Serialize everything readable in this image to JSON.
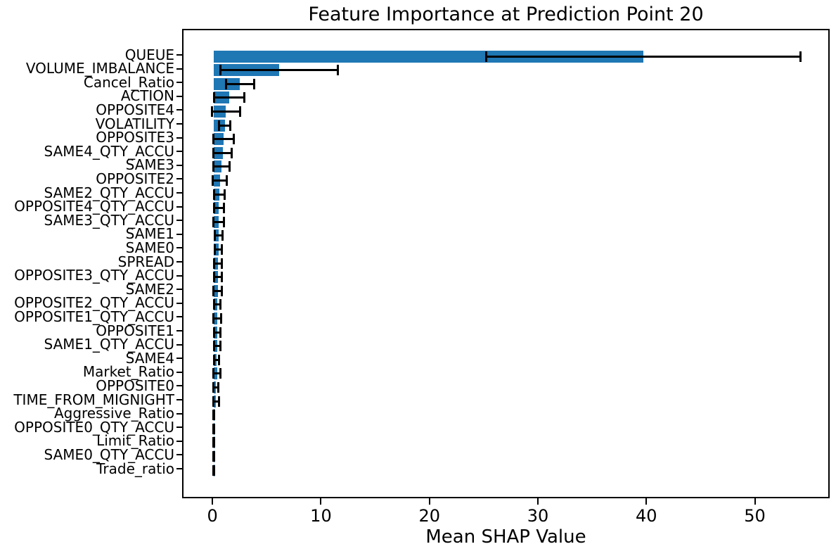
{
  "chart_data": {
    "type": "bar",
    "orientation": "horizontal",
    "title": "Feature Importance at Prediction Point 20",
    "xlabel": "Mean SHAP Value",
    "ylabel": "",
    "xlim": [
      -2.8,
      56.9
    ],
    "xticks": [
      0,
      10,
      20,
      30,
      40,
      50
    ],
    "grid": false,
    "legend": false,
    "bar_color": "#1f77b4",
    "error_color": "#000000",
    "features": [
      {
        "label": "QUEUE",
        "value": 39.6,
        "error": 14.5
      },
      {
        "label": "VOLUME_IMBALANCE",
        "value": 6.0,
        "error": 5.4
      },
      {
        "label": "Cancel_Ratio",
        "value": 2.4,
        "error": 1.3
      },
      {
        "label": "ACTION",
        "value": 1.4,
        "error": 1.4
      },
      {
        "label": "OPPOSITE4",
        "value": 1.1,
        "error": 1.3
      },
      {
        "label": "VOLATILITY",
        "value": 1.0,
        "error": 0.5
      },
      {
        "label": "OPPOSITE3",
        "value": 0.9,
        "error": 0.95
      },
      {
        "label": "SAME4_QTY_ACCU",
        "value": 0.8,
        "error": 0.82
      },
      {
        "label": "SAME3",
        "value": 0.7,
        "error": 0.72
      },
      {
        "label": "OPPOSITE2",
        "value": 0.55,
        "error": 0.65
      },
      {
        "label": "SAME2_QTY_ACCU",
        "value": 0.5,
        "error": 0.5
      },
      {
        "label": "OPPOSITE4_QTY_ACCU",
        "value": 0.47,
        "error": 0.47
      },
      {
        "label": "SAME3_QTY_ACCU",
        "value": 0.45,
        "error": 0.5
      },
      {
        "label": "SAME1",
        "value": 0.42,
        "error": 0.35
      },
      {
        "label": "SAME0",
        "value": 0.41,
        "error": 0.35
      },
      {
        "label": "SPREAD",
        "value": 0.39,
        "error": 0.35
      },
      {
        "label": "OPPOSITE3_QTY_ACCU",
        "value": 0.36,
        "error": 0.37
      },
      {
        "label": "SAME2",
        "value": 0.35,
        "error": 0.4
      },
      {
        "label": "OPPOSITE2_QTY_ACCU",
        "value": 0.33,
        "error": 0.3
      },
      {
        "label": "OPPOSITE1_QTY_ACCU",
        "value": 0.33,
        "error": 0.35
      },
      {
        "label": "OPPOSITE1",
        "value": 0.3,
        "error": 0.3
      },
      {
        "label": "SAME1_QTY_ACCU",
        "value": 0.29,
        "error": 0.3
      },
      {
        "label": "SAME4",
        "value": 0.27,
        "error": 0.22
      },
      {
        "label": "Market_Ratio",
        "value": 0.28,
        "error": 0.3
      },
      {
        "label": "OPPOSITE0",
        "value": 0.18,
        "error": 0.25
      },
      {
        "label": "TIME_FROM_MIGNIGHT",
        "value": 0.21,
        "error": 0.27
      },
      {
        "label": "Aggressive_Ratio",
        "value": 0.01,
        "error": 0.03
      },
      {
        "label": "OPPOSITE0_QTY_ACCU",
        "value": 0.01,
        "error": 0.03
      },
      {
        "label": "Limit_Ratio",
        "value": 0.01,
        "error": 0.03
      },
      {
        "label": "SAME0_QTY_ACCU",
        "value": 0.01,
        "error": 0.03
      },
      {
        "label": "Trade_ratio",
        "value": 0.01,
        "error": 0.03
      }
    ]
  }
}
